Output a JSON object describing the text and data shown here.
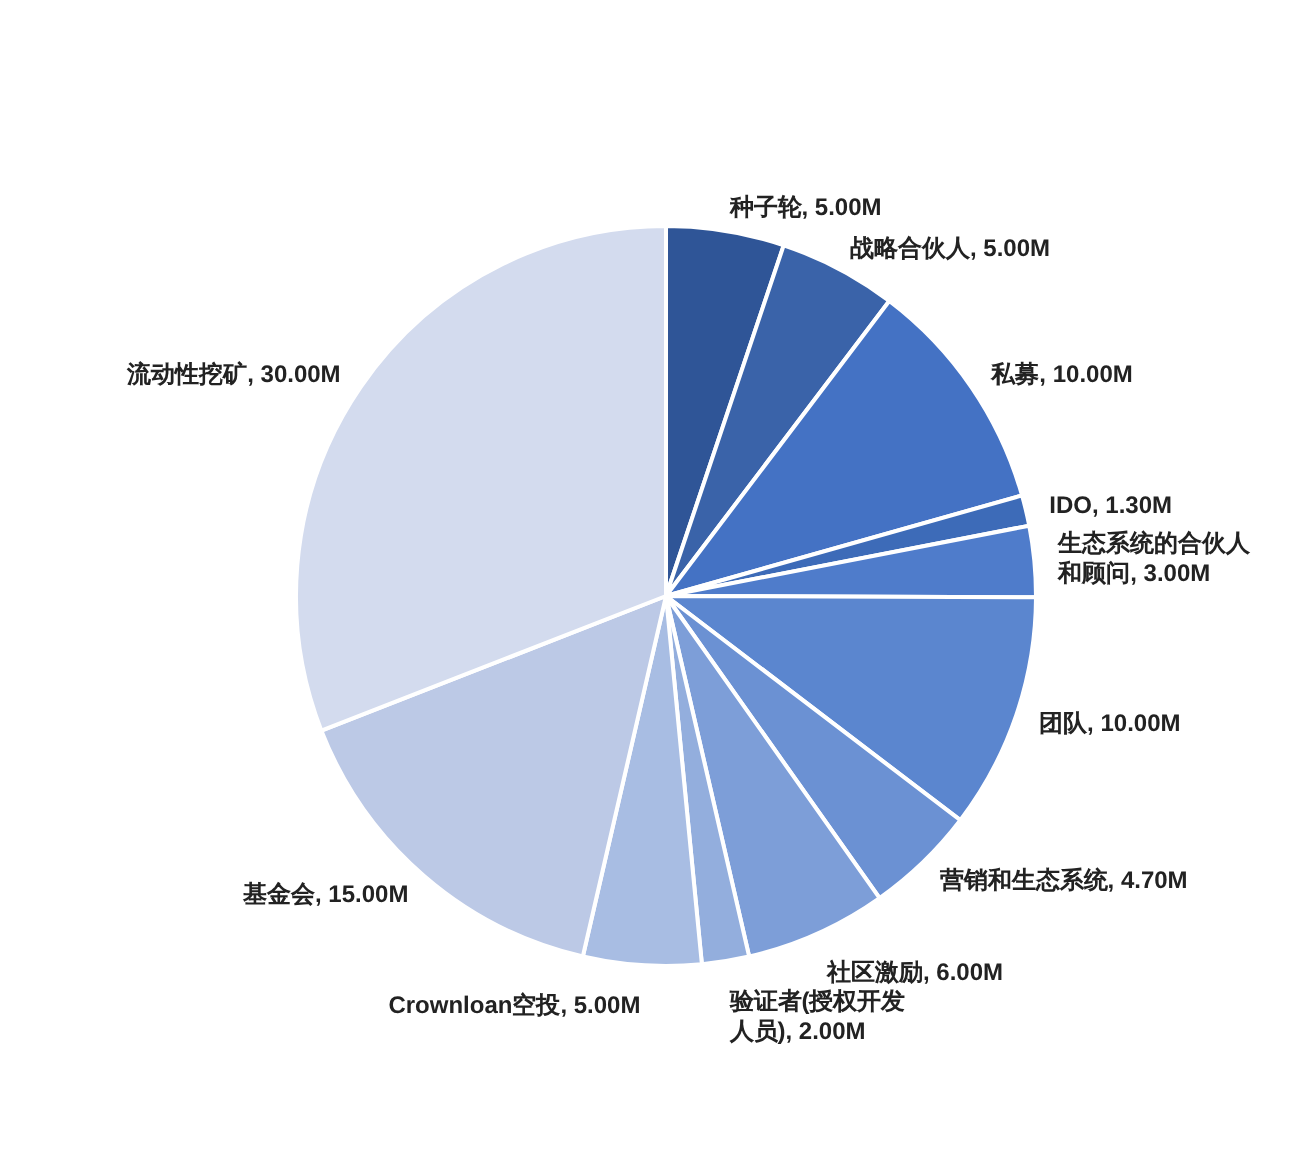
{
  "chart_data": {
    "type": "pie",
    "categories": [
      "种子轮",
      "战略合伙人",
      "私募",
      "IDO",
      "生态系统的合伙人和顾问",
      "团队",
      "营销和生态系统",
      "社区激励",
      "验证者(授权开发人员)",
      "Crownloan空投",
      "基金会",
      "流动性挖矿"
    ],
    "values": [
      5,
      5,
      10,
      1.3,
      3,
      10,
      4.7,
      6,
      2,
      5,
      15,
      30
    ],
    "value_labels": [
      "5.00M",
      "5.00M",
      "10.00M",
      "1.30M",
      "3.00M",
      "10.00M",
      "4.70M",
      "6.00M",
      "2.00M",
      "5.00M",
      "15.00M",
      "30.00M"
    ],
    "colors": [
      "#2f5597",
      "#3a63a9",
      "#4472c4",
      "#3d6bb8",
      "#4f7ccb",
      "#5b86cf",
      "#6b91d3",
      "#7d9ed8",
      "#93aedd",
      "#a8bde3",
      "#bcc9e6",
      "#d3dbee"
    ]
  }
}
